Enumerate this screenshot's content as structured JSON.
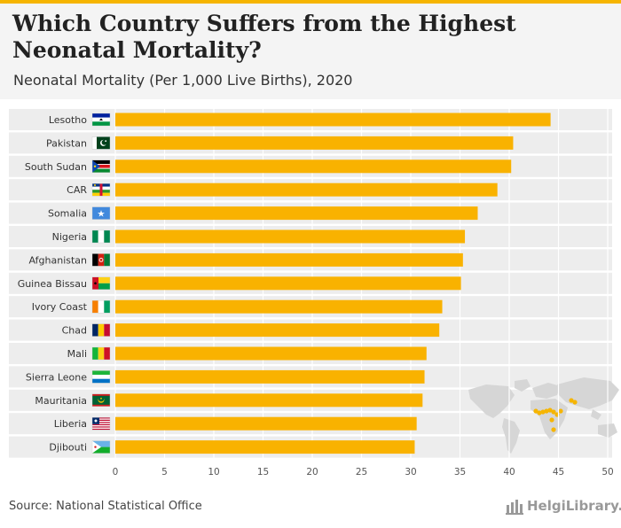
{
  "title": "Which Country Suffers from the Highest Neonatal Mortality?",
  "subtitle": "Neonatal Mortality (Per 1,000 Live Births), 2020",
  "source": "Source: National Statistical Office",
  "logo_text": "HelgiLibrary.",
  "colors": {
    "bar": "#f9b200",
    "band": "#ededed",
    "accent": "#f6b500",
    "map_land": "#d6d6d6",
    "map_highlight": "#f6b500"
  },
  "chart_data": {
    "type": "bar",
    "orientation": "horizontal",
    "categories": [
      "Lesotho",
      "Pakistan",
      "South Sudan",
      "CAR",
      "Somalia",
      "Nigeria",
      "Afghanistan",
      "Guinea Bissau",
      "Ivory Coast",
      "Chad",
      "Mali",
      "Sierra Leone",
      "Mauritania",
      "Liberia",
      "Djibouti"
    ],
    "values": [
      44.2,
      40.4,
      40.2,
      38.8,
      36.8,
      35.5,
      35.3,
      35.1,
      33.2,
      32.9,
      31.6,
      31.4,
      31.2,
      30.6,
      30.4
    ],
    "flag_icons": [
      "lesotho-flag-icon",
      "pakistan-flag-icon",
      "south-sudan-flag-icon",
      "car-flag-icon",
      "somalia-flag-icon",
      "nigeria-flag-icon",
      "afghanistan-flag-icon",
      "guinea-bissau-flag-icon",
      "ivory-coast-flag-icon",
      "chad-flag-icon",
      "mali-flag-icon",
      "sierra-leone-flag-icon",
      "mauritania-flag-icon",
      "liberia-flag-icon",
      "djibouti-flag-icon"
    ],
    "xlim": [
      0,
      50
    ],
    "xticks": [
      0,
      5,
      10,
      15,
      20,
      25,
      30,
      35,
      40,
      45,
      50
    ],
    "grid": true
  }
}
